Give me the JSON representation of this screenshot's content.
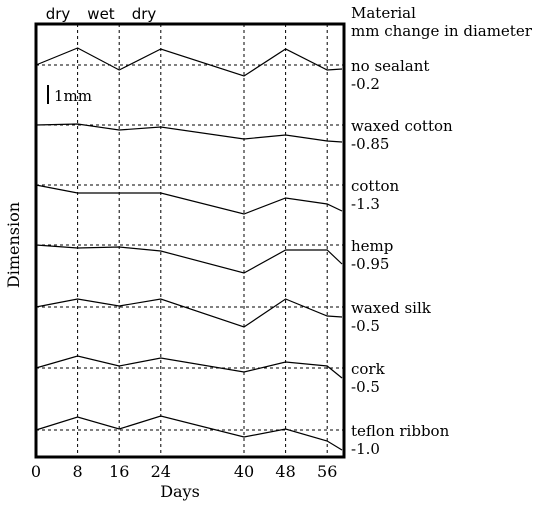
{
  "chart_data": {
    "type": "line",
    "title": "",
    "xlabel": "Days",
    "ylabel": "Dimension",
    "x_ticks": [
      "0",
      "8",
      "16",
      "24",
      "40",
      "48",
      "56"
    ],
    "x_tick_values": [
      0,
      8,
      16,
      24,
      40,
      48,
      56
    ],
    "top_labels": [
      "dry",
      "wet",
      "dry"
    ],
    "legend_header": [
      "Material",
      "mm change in diameter"
    ],
    "scale_bar_label": "1mm",
    "grid": true,
    "x_last_point_label": "",
    "series": [
      {
        "name": "no sealant",
        "change": "-0.2",
        "x": [
          0,
          8,
          16,
          24,
          40,
          48,
          56,
          64
        ],
        "offsets_mm": [
          0,
          0.85,
          -0.25,
          0.8,
          -0.55,
          0.8,
          -0.25,
          -0.2
        ]
      },
      {
        "name": "waxed cotton",
        "change": "-0.85",
        "x": [
          0,
          8,
          16,
          24,
          40,
          48,
          56,
          64
        ],
        "offsets_mm": [
          0,
          0.05,
          -0.25,
          -0.1,
          -0.7,
          -0.5,
          -0.8,
          -0.85
        ]
      },
      {
        "name": "cotton",
        "change": "-1.3",
        "x": [
          0,
          8,
          16,
          24,
          40,
          48,
          56,
          64
        ],
        "offsets_mm": [
          0,
          -0.4,
          -0.4,
          -0.4,
          -1.45,
          -0.65,
          -0.95,
          -1.3
        ]
      },
      {
        "name": "hemp",
        "change": "-0.95",
        "x": [
          0,
          8,
          16,
          24,
          40,
          48,
          56,
          64
        ],
        "offsets_mm": [
          0,
          -0.15,
          -0.1,
          -0.3,
          -1.4,
          -0.25,
          -0.25,
          -0.95
        ]
      },
      {
        "name": "waxed silk",
        "change": "-0.5",
        "x": [
          0,
          8,
          16,
          24,
          40,
          48,
          56,
          64
        ],
        "offsets_mm": [
          0,
          0.4,
          0.05,
          0.4,
          -1.0,
          0.4,
          -0.45,
          -0.5
        ]
      },
      {
        "name": "cork",
        "change": "-0.5",
        "x": [
          0,
          8,
          16,
          24,
          40,
          48,
          56,
          64
        ],
        "offsets_mm": [
          0,
          0.6,
          0.1,
          0.5,
          -0.2,
          0.3,
          0.1,
          -0.5
        ]
      },
      {
        "name": "teflon ribbon",
        "change": "-1.0",
        "x": [
          0,
          8,
          16,
          24,
          40,
          48,
          56,
          64
        ],
        "offsets_mm": [
          0,
          0.65,
          0.05,
          0.7,
          -0.35,
          0.05,
          -0.55,
          -1.0
        ]
      }
    ]
  }
}
